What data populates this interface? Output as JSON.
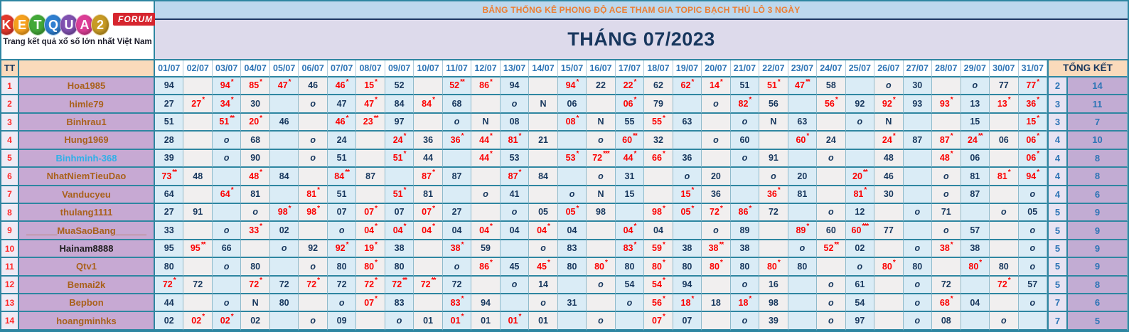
{
  "logo": {
    "brand_letters": [
      "K",
      "E",
      "T",
      "Q",
      "U",
      "A",
      "2"
    ],
    "brand_letter_colors": [
      "#E2382B",
      "#F6A11E",
      "#43A838",
      "#2F7FD0",
      "#8051B0",
      "#DC3E96",
      "#C89B25"
    ],
    "forum_badge": "FORUM",
    "tagline": "Trang kết quả xổ số lớn nhất Việt Nam"
  },
  "banner": {
    "title": "BẢNG THỐNG KÊ PHONG ĐỘ ACE THAM GIA TOPIC BẠCH THỦ LÔ 3 NGÀY",
    "month_title": "THÁNG 07/2023"
  },
  "legend": {
    "miss_symbol": "o",
    "no_result_symbol": "N",
    "hit_marker": "*"
  },
  "colors": {
    "border_teal": "#2E86A1",
    "banner_bg": "#BDD8EE",
    "banner_text": "#ED7D31",
    "month_bg": "#DDDAEB",
    "navy_text": "#17375D",
    "date_header_text": "#2E75B6",
    "peach_header_bg": "#FADABB",
    "name_col_bg": "#C7A9D3",
    "name_text_orange": "#A9611B",
    "name_text_blue": "#2FB0E8",
    "name_text_black": "#202020",
    "col_odd_bg": "#DAECF6",
    "col_even_bg": "#F1EFEF",
    "hit_red": "#FC0000",
    "summary1_bg": "#E8E3F2",
    "summary2_bg": "#C2ACD3",
    "summary_text": "#2E75B6"
  },
  "table": {
    "corner_label": "TT",
    "summary_header": "TỔNG KẾT",
    "dates": [
      "01/07",
      "02/07",
      "03/07",
      "04/07",
      "05/07",
      "06/07",
      "07/07",
      "08/07",
      "09/07",
      "10/07",
      "11/07",
      "12/07",
      "13/07",
      "14/07",
      "15/07",
      "16/07",
      "17/07",
      "18/07",
      "19/07",
      "20/07",
      "21/07",
      "22/07",
      "23/07",
      "24/07",
      "25/07",
      "26/07",
      "27/07",
      "28/07",
      "29/07",
      "30/07",
      "31/07"
    ],
    "rows": [
      {
        "tt": "1",
        "name": "Hoa1985",
        "name_style": "orange",
        "cells": [
          "94",
          "",
          "94*",
          "85*",
          "47*",
          "46",
          "46*",
          "15*",
          "52",
          "",
          "52**",
          "86*",
          "94",
          "",
          "94*",
          "22",
          "22*",
          "62",
          "62*",
          "14*",
          "51",
          "51*",
          "47**",
          "58",
          "",
          "o",
          "30",
          "",
          "o",
          "77",
          "77*"
        ],
        "summary": [
          "2",
          "14"
        ]
      },
      {
        "tt": "2",
        "name": "himle79",
        "name_style": "orange",
        "cells": [
          "27",
          "27*",
          "34*",
          "30",
          "",
          "o",
          "47",
          "47*",
          "84",
          "84*",
          "68",
          "",
          "o",
          "N",
          "06",
          "",
          "06*",
          "79",
          "",
          "o",
          "82*",
          "56",
          "",
          "56*",
          "92",
          "92*",
          "93",
          "93*",
          "13",
          "13*",
          "36*"
        ],
        "summary": [
          "3",
          "11"
        ]
      },
      {
        "tt": "3",
        "name": "Binhrau1",
        "name_style": "orange",
        "cells": [
          "51",
          "",
          "51**",
          "20*",
          "46",
          "",
          "46*",
          "23**",
          "97",
          "",
          "o",
          "N",
          "08",
          "",
          "08*",
          "N",
          "55",
          "55*",
          "63",
          "",
          "o",
          "N",
          "63",
          "",
          "o",
          "N",
          "",
          "",
          "15",
          "",
          "15*"
        ],
        "summary": [
          "3",
          "7"
        ]
      },
      {
        "tt": "4",
        "name": "Hung1969",
        "name_style": "orange",
        "cells": [
          "28",
          "",
          "o",
          "68",
          "",
          "o",
          "24",
          "",
          "24*",
          "36",
          "36*",
          "44*",
          "81*",
          "21",
          "",
          "o",
          "60**",
          "32",
          "",
          "o",
          "60",
          "",
          "60*",
          "24",
          "",
          "24*",
          "87",
          "87*",
          "24**",
          "06",
          "06*"
        ],
        "summary": [
          "4",
          "10"
        ]
      },
      {
        "tt": "5",
        "name": "Binhminh-368",
        "name_style": "blue",
        "cells": [
          "39",
          "",
          "o",
          "90",
          "",
          "o",
          "51",
          "",
          "51*",
          "44",
          "",
          "44*",
          "53",
          "",
          "53*",
          "72***",
          "44*",
          "66*",
          "36",
          "",
          "o",
          "91",
          "",
          "o",
          "",
          "48",
          "",
          "48*",
          "06",
          "",
          "06*"
        ],
        "summary": [
          "4",
          "8"
        ]
      },
      {
        "tt": "6",
        "name": "NhatNiemTieuDao",
        "name_style": "orange",
        "cells": [
          "73**",
          "48",
          "",
          "48*",
          "84",
          "",
          "84**",
          "87",
          "",
          "87*",
          "87",
          "",
          "87*",
          "84",
          "",
          "o",
          "31",
          "",
          "o",
          "20",
          "",
          "o",
          "20",
          "",
          "20**",
          "46",
          "",
          "o",
          "81",
          "81*",
          "94*"
        ],
        "summary": [
          "4",
          "8"
        ]
      },
      {
        "tt": "7",
        "name": "Vanducyeu",
        "name_style": "orange",
        "cells": [
          "64",
          "",
          "64*",
          "81",
          "",
          "81*",
          "51",
          "",
          "51*",
          "81",
          "",
          "o",
          "41",
          "",
          "o",
          "N",
          "15",
          "",
          "15*",
          "36",
          "",
          "36*",
          "81",
          "",
          "81*",
          "30",
          "",
          "o",
          "87",
          "",
          "o"
        ],
        "summary": [
          "4",
          "6"
        ]
      },
      {
        "tt": "8",
        "name": "thulang1111",
        "name_style": "orange",
        "cells": [
          "27",
          "91",
          "",
          "o",
          "98*",
          "98*",
          "07",
          "07*",
          "07",
          "07*",
          "27",
          "",
          "o",
          "05",
          "05*",
          "98",
          "",
          "98*",
          "05*",
          "72*",
          "86*",
          "72",
          "",
          "o",
          "12",
          "",
          "o",
          "71",
          "",
          "o",
          "05"
        ],
        "summary": [
          "5",
          "9"
        ]
      },
      {
        "tt": "9",
        "name": "______MuaSaoBang______",
        "name_style": "orange",
        "cells": [
          "33",
          "",
          "o",
          "33*",
          "02",
          "",
          "o",
          "04*",
          "04*",
          "04*",
          "04",
          "04*",
          "04",
          "04*",
          "04",
          "",
          "04*",
          "04",
          "",
          "o",
          "89",
          "",
          "89*",
          "60",
          "60***",
          "77",
          "",
          "o",
          "57",
          "",
          "o"
        ],
        "summary": [
          "5",
          "9"
        ]
      },
      {
        "tt": "10",
        "name": "Hainam8888",
        "name_style": "black",
        "cells": [
          "95",
          "95**",
          "66",
          "",
          "o",
          "92",
          "92*",
          "19*",
          "38",
          "",
          "38*",
          "59",
          "",
          "o",
          "83",
          "",
          "83*",
          "59*",
          "38",
          "38**",
          "38",
          "",
          "o",
          "52**",
          "02",
          "",
          "o",
          "38*",
          "38",
          "",
          "o"
        ],
        "summary": [
          "5",
          "9"
        ]
      },
      {
        "tt": "11",
        "name": "Qtv1",
        "name_style": "orange",
        "cells": [
          "80",
          "",
          "o",
          "80",
          "",
          "o",
          "80",
          "80*",
          "80",
          "",
          "o",
          "86*",
          "45",
          "45*",
          "80",
          "80*",
          "80",
          "80*",
          "80",
          "80*",
          "80",
          "80*",
          "80",
          "",
          "o",
          "80*",
          "80",
          "",
          "80*",
          "80",
          "o"
        ],
        "summary": [
          "5",
          "9"
        ]
      },
      {
        "tt": "12",
        "name": "Bemai2k",
        "name_style": "orange",
        "cells": [
          "72*",
          "72",
          "",
          "72*",
          "72",
          "72*",
          "72",
          "72*",
          "72**",
          "72**",
          "72",
          "",
          "o",
          "14",
          "",
          "o",
          "54",
          "54*",
          "94",
          "",
          "o",
          "16",
          "",
          "o",
          "61",
          "",
          "o",
          "72",
          "",
          "72*",
          "57"
        ],
        "summary": [
          "5",
          "8"
        ]
      },
      {
        "tt": "13",
        "name": "Bepbon",
        "name_style": "orange",
        "cells": [
          "44",
          "",
          "o",
          "N",
          "80",
          "",
          "o",
          "07*",
          "83",
          "",
          "83*",
          "94",
          "",
          "o",
          "31",
          "",
          "o",
          "56*",
          "18*",
          "18",
          "18*",
          "98",
          "",
          "o",
          "54",
          "",
          "o",
          "68*",
          "04",
          "",
          "o"
        ],
        "summary": [
          "7",
          "6"
        ]
      },
      {
        "tt": "14",
        "name": "hoangminhks",
        "name_style": "orange",
        "cells": [
          "02",
          "02*",
          "02*",
          "02",
          "",
          "o",
          "09",
          "",
          "o",
          "01",
          "01*",
          "01",
          "01*",
          "01",
          "",
          "o",
          "",
          "07*",
          "07",
          "",
          "o",
          "39",
          "",
          "o",
          "97",
          "",
          "o",
          "08",
          "",
          "o",
          ""
        ],
        "summary": [
          "7",
          "5"
        ]
      }
    ]
  }
}
